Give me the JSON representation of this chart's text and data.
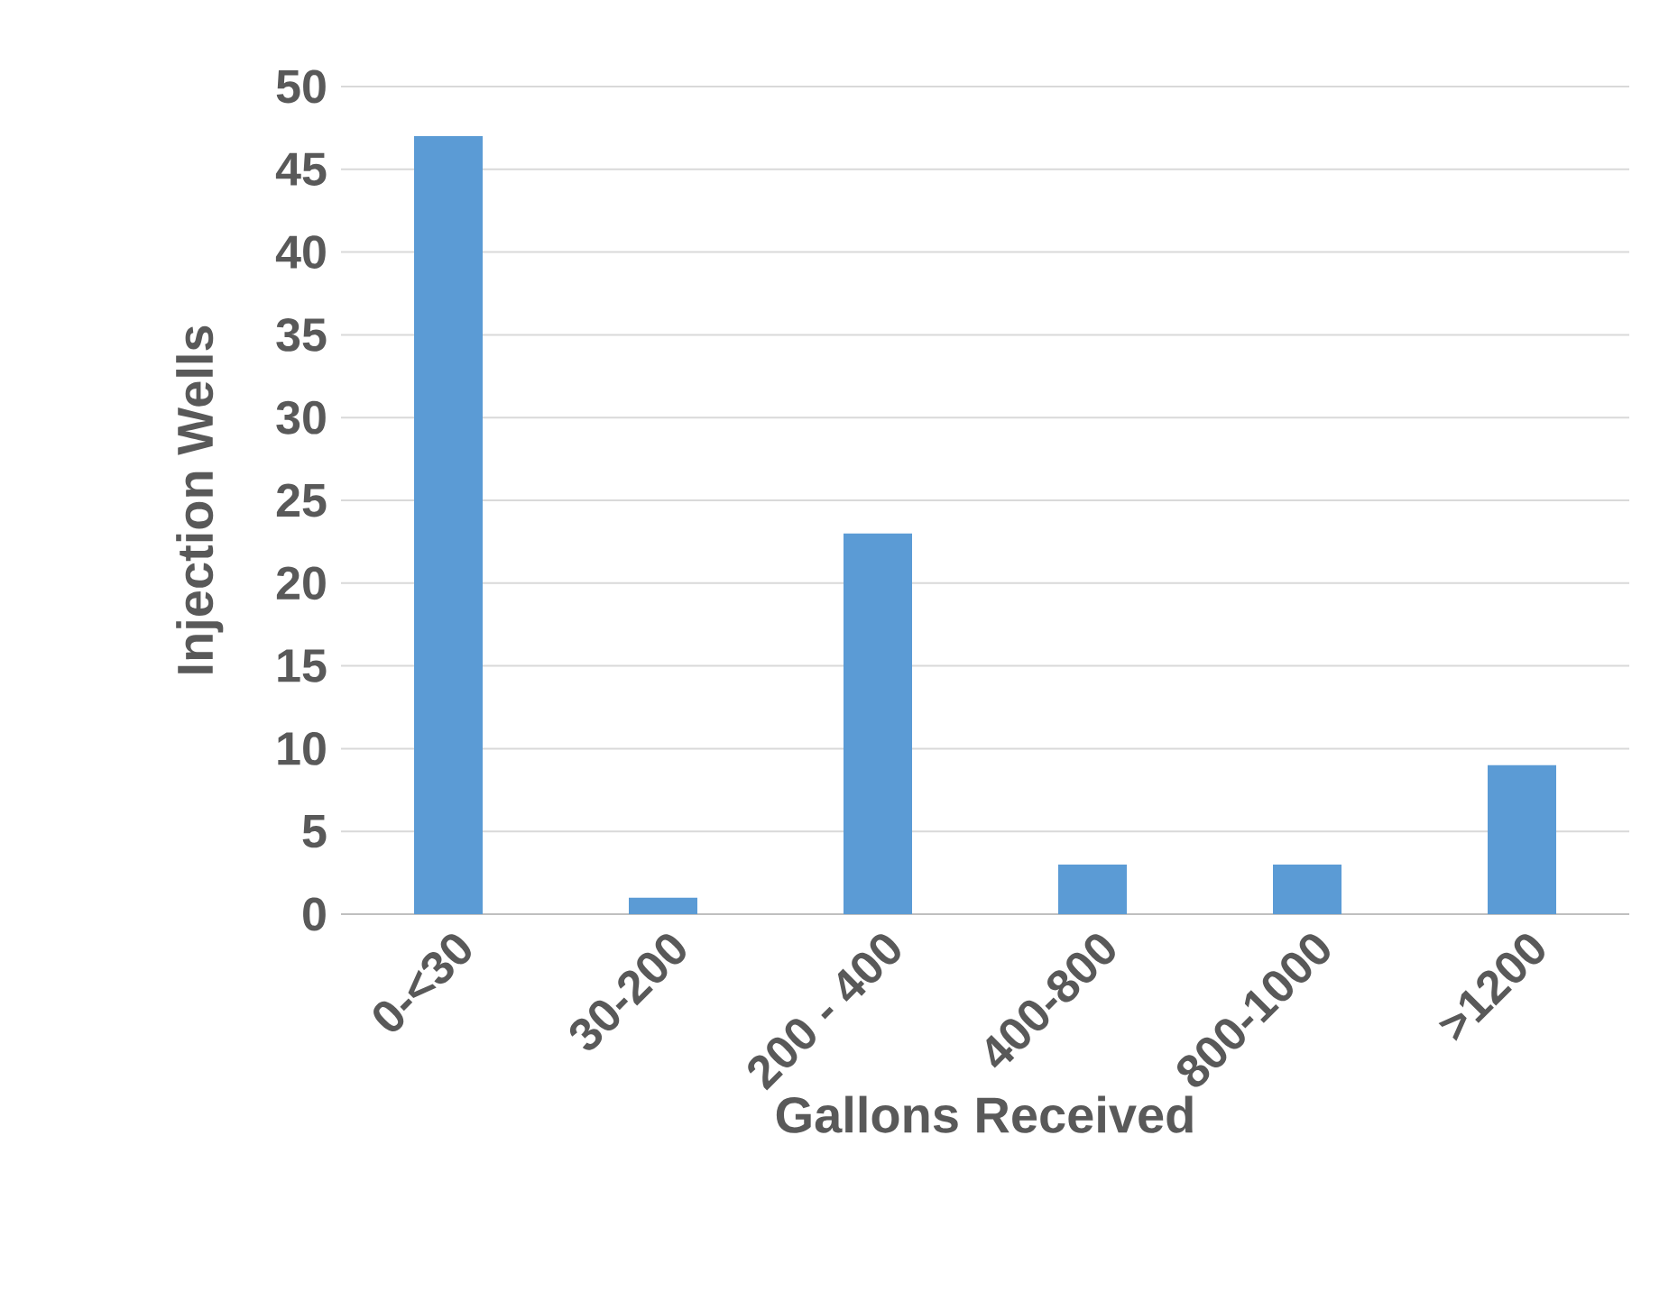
{
  "chart_data": {
    "type": "bar",
    "xlabel": "Gallons Received",
    "ylabel": "Injection Wells",
    "categories": [
      "0-<30",
      "30-200",
      "200 - 400",
      "400-800",
      "800-1000",
      ">1200"
    ],
    "values": [
      47,
      1,
      23,
      3,
      3,
      9
    ],
    "color": "#5b9bd5",
    "ylim": [
      0,
      50
    ],
    "yticks": [
      0,
      5,
      10,
      15,
      20,
      25,
      30,
      35,
      40,
      45,
      50
    ],
    "grid": "y"
  }
}
